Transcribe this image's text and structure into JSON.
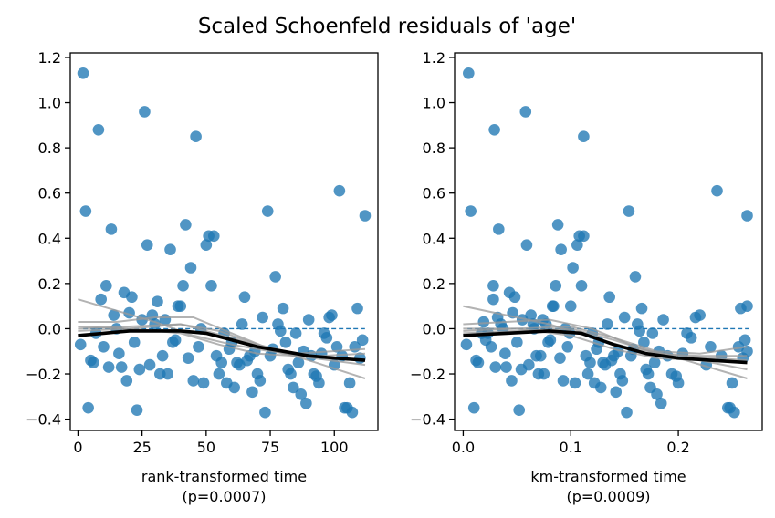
{
  "figure": {
    "title": "Scaled Schoenfeld residuals of 'age'"
  },
  "colors": {
    "points": "#1f77b4",
    "trend_bold": "#000000",
    "trend_bootstrap": "#999999",
    "zero_line": "#1f77b4"
  },
  "chart_data": [
    {
      "type": "scatter",
      "panel": "left",
      "xlabel": "rank-transformed time",
      "pvalue_label": "(p=0.0007)",
      "xlim": [
        -3,
        117
      ],
      "ylim": [
        -0.45,
        1.22
      ],
      "xticks": [
        0,
        25,
        50,
        75,
        100
      ],
      "xtick_labels": [
        "0",
        "25",
        "50",
        "75",
        "100"
      ],
      "yticks": [
        -0.4,
        -0.2,
        0.0,
        0.2,
        0.4,
        0.6,
        0.8,
        1.0,
        1.2
      ],
      "ytick_labels": [
        "−0.4",
        "−0.2",
        "0.0",
        "0.2",
        "0.4",
        "0.6",
        "0.8",
        "1.0",
        "1.2"
      ],
      "reference_line_y": 0,
      "points": [
        [
          1,
          -0.07
        ],
        [
          2,
          1.13
        ],
        [
          3,
          0.52
        ],
        [
          4,
          -0.35
        ],
        [
          5,
          -0.14
        ],
        [
          6,
          -0.15
        ],
        [
          7,
          -0.02
        ],
        [
          8,
          0.88
        ],
        [
          9,
          0.13
        ],
        [
          10,
          -0.08
        ],
        [
          11,
          0.19
        ],
        [
          12,
          -0.17
        ],
        [
          13,
          0.44
        ],
        [
          14,
          0.06
        ],
        [
          15,
          0.0
        ],
        [
          16,
          -0.11
        ],
        [
          17,
          -0.17
        ],
        [
          18,
          0.16
        ],
        [
          19,
          -0.23
        ],
        [
          20,
          0.07
        ],
        [
          21,
          0.14
        ],
        [
          22,
          -0.06
        ],
        [
          23,
          -0.36
        ],
        [
          24,
          -0.18
        ],
        [
          25,
          0.04
        ],
        [
          26,
          0.96
        ],
        [
          27,
          0.37
        ],
        [
          28,
          -0.16
        ],
        [
          29,
          0.06
        ],
        [
          30,
          0.02
        ],
        [
          31,
          0.12
        ],
        [
          32,
          -0.2
        ],
        [
          33,
          -0.12
        ],
        [
          34,
          0.04
        ],
        [
          35,
          -0.2
        ],
        [
          36,
          0.35
        ],
        [
          37,
          -0.06
        ],
        [
          38,
          -0.05
        ],
        [
          39,
          0.1
        ],
        [
          40,
          0.1
        ],
        [
          41,
          0.19
        ],
        [
          42,
          0.46
        ],
        [
          43,
          -0.13
        ],
        [
          44,
          0.27
        ],
        [
          45,
          -0.23
        ],
        [
          46,
          0.85
        ],
        [
          47,
          -0.08
        ],
        [
          48,
          0.0
        ],
        [
          49,
          -0.24
        ],
        [
          50,
          0.37
        ],
        [
          51,
          0.41
        ],
        [
          52,
          0.19
        ],
        [
          53,
          0.41
        ],
        [
          54,
          -0.12
        ],
        [
          55,
          -0.2
        ],
        [
          56,
          -0.15
        ],
        [
          57,
          -0.02
        ],
        [
          58,
          -0.24
        ],
        [
          59,
          -0.09
        ],
        [
          60,
          -0.06
        ],
        [
          61,
          -0.26
        ],
        [
          62,
          -0.15
        ],
        [
          63,
          -0.16
        ],
        [
          64,
          0.02
        ],
        [
          65,
          0.14
        ],
        [
          66,
          -0.14
        ],
        [
          67,
          -0.12
        ],
        [
          68,
          -0.28
        ],
        [
          69,
          -0.1
        ],
        [
          70,
          -0.2
        ],
        [
          71,
          -0.23
        ],
        [
          72,
          0.05
        ],
        [
          73,
          -0.37
        ],
        [
          74,
          0.52
        ],
        [
          75,
          -0.12
        ],
        [
          76,
          -0.09
        ],
        [
          77,
          0.23
        ],
        [
          78,
          0.02
        ],
        [
          79,
          -0.01
        ],
        [
          80,
          0.09
        ],
        [
          81,
          -0.06
        ],
        [
          82,
          -0.18
        ],
        [
          83,
          -0.2
        ],
        [
          84,
          -0.26
        ],
        [
          85,
          -0.02
        ],
        [
          86,
          -0.15
        ],
        [
          87,
          -0.29
        ],
        [
          88,
          -0.1
        ],
        [
          89,
          -0.33
        ],
        [
          90,
          0.04
        ],
        [
          91,
          -0.12
        ],
        [
          92,
          -0.2
        ],
        [
          93,
          -0.21
        ],
        [
          94,
          -0.24
        ],
        [
          95,
          -0.11
        ],
        [
          96,
          -0.02
        ],
        [
          97,
          -0.04
        ],
        [
          98,
          0.05
        ],
        [
          99,
          0.06
        ],
        [
          100,
          -0.16
        ],
        [
          101,
          -0.08
        ],
        [
          102,
          0.61
        ],
        [
          103,
          -0.12
        ],
        [
          104,
          -0.35
        ],
        [
          105,
          -0.35
        ],
        [
          106,
          -0.24
        ],
        [
          107,
          -0.37
        ],
        [
          108,
          -0.08
        ],
        [
          109,
          0.09
        ],
        [
          110,
          -0.13
        ],
        [
          111,
          -0.05
        ],
        [
          112,
          0.5
        ]
      ],
      "trend_bold": [
        [
          0,
          -0.03
        ],
        [
          10,
          -0.02
        ],
        [
          20,
          -0.01
        ],
        [
          30,
          -0.01
        ],
        [
          40,
          -0.01
        ],
        [
          50,
          -0.02
        ],
        [
          60,
          -0.05
        ],
        [
          70,
          -0.08
        ],
        [
          80,
          -0.1
        ],
        [
          90,
          -0.12
        ],
        [
          100,
          -0.13
        ],
        [
          112,
          -0.14
        ]
      ],
      "trend_bootstrap": [
        [
          [
            0,
            0.13
          ],
          [
            15,
            0.08
          ],
          [
            30,
            0.03
          ],
          [
            45,
            -0.03
          ],
          [
            60,
            -0.07
          ],
          [
            75,
            -0.1
          ],
          [
            90,
            -0.12
          ],
          [
            112,
            -0.14
          ]
        ],
        [
          [
            0,
            0.03
          ],
          [
            15,
            0.03
          ],
          [
            30,
            0.05
          ],
          [
            45,
            0.05
          ],
          [
            60,
            -0.02
          ],
          [
            75,
            -0.09
          ],
          [
            90,
            -0.14
          ],
          [
            112,
            -0.22
          ]
        ],
        [
          [
            0,
            -0.01
          ],
          [
            20,
            0.0
          ],
          [
            40,
            0.02
          ],
          [
            55,
            -0.01
          ],
          [
            70,
            -0.07
          ],
          [
            85,
            -0.11
          ],
          [
            112,
            -0.09
          ]
        ],
        [
          [
            0,
            0.01
          ],
          [
            20,
            0.0
          ],
          [
            40,
            -0.02
          ],
          [
            55,
            -0.07
          ],
          [
            70,
            -0.11
          ],
          [
            85,
            -0.12
          ],
          [
            112,
            -0.16
          ]
        ],
        [
          [
            0,
            0.0
          ],
          [
            20,
            0.01
          ],
          [
            40,
            0.02
          ],
          [
            60,
            -0.04
          ],
          [
            80,
            -0.11
          ],
          [
            95,
            -0.12
          ],
          [
            112,
            -0.11
          ]
        ]
      ]
    },
    {
      "type": "scatter",
      "panel": "right",
      "xlabel": "km-transformed time",
      "pvalue_label": "(p=0.0009)",
      "xlim": [
        -0.008,
        0.278
      ],
      "ylim": [
        -0.45,
        1.22
      ],
      "xticks": [
        0.0,
        0.1,
        0.2
      ],
      "xtick_labels": [
        "0.0",
        "0.1",
        "0.2"
      ],
      "yticks": [
        -0.4,
        -0.2,
        0.0,
        0.2,
        0.4,
        0.6,
        0.8,
        1.0,
        1.2
      ],
      "ytick_labels": [
        "−0.4",
        "−0.2",
        "0.0",
        "0.2",
        "0.4",
        "0.6",
        "0.8",
        "1.0",
        "1.2"
      ],
      "reference_line_y": 0,
      "points": [
        [
          0.003,
          -0.07
        ],
        [
          0.005,
          1.13
        ],
        [
          0.007,
          0.52
        ],
        [
          0.01,
          -0.35
        ],
        [
          0.012,
          -0.14
        ],
        [
          0.014,
          -0.15
        ],
        [
          0.017,
          -0.02
        ],
        [
          0.019,
          0.03
        ],
        [
          0.021,
          -0.05
        ],
        [
          0.023,
          -0.02
        ],
        [
          0.026,
          -0.08
        ],
        [
          0.028,
          0.13
        ],
        [
          0.028,
          0.19
        ],
        [
          0.029,
          0.88
        ],
        [
          0.03,
          -0.17
        ],
        [
          0.032,
          0.05
        ],
        [
          0.033,
          0.44
        ],
        [
          0.035,
          0.02
        ],
        [
          0.037,
          0.0
        ],
        [
          0.039,
          -0.11
        ],
        [
          0.04,
          -0.17
        ],
        [
          0.043,
          0.16
        ],
        [
          0.045,
          -0.23
        ],
        [
          0.046,
          0.07
        ],
        [
          0.048,
          0.14
        ],
        [
          0.05,
          -0.06
        ],
        [
          0.052,
          -0.36
        ],
        [
          0.054,
          -0.18
        ],
        [
          0.055,
          0.04
        ],
        [
          0.058,
          0.96
        ],
        [
          0.059,
          0.37
        ],
        [
          0.061,
          -0.16
        ],
        [
          0.063,
          0.06
        ],
        [
          0.065,
          0.02
        ],
        [
          0.066,
          0.0
        ],
        [
          0.068,
          -0.12
        ],
        [
          0.07,
          -0.2
        ],
        [
          0.072,
          -0.12
        ],
        [
          0.074,
          0.04
        ],
        [
          0.075,
          -0.2
        ],
        [
          0.077,
          0.02
        ],
        [
          0.079,
          -0.06
        ],
        [
          0.081,
          -0.05
        ],
        [
          0.083,
          0.1
        ],
        [
          0.084,
          0.1
        ],
        [
          0.086,
          0.19
        ],
        [
          0.088,
          0.46
        ],
        [
          0.09,
          -0.13
        ],
        [
          0.091,
          0.35
        ],
        [
          0.093,
          -0.23
        ],
        [
          0.095,
          0.0
        ],
        [
          0.097,
          -0.08
        ],
        [
          0.099,
          -0.02
        ],
        [
          0.1,
          0.1
        ],
        [
          0.102,
          0.27
        ],
        [
          0.104,
          -0.24
        ],
        [
          0.106,
          0.37
        ],
        [
          0.108,
          0.41
        ],
        [
          0.11,
          0.19
        ],
        [
          0.112,
          0.41
        ],
        [
          0.112,
          0.85
        ],
        [
          0.114,
          -0.12
        ],
        [
          0.116,
          -0.2
        ],
        [
          0.118,
          -0.15
        ],
        [
          0.12,
          -0.02
        ],
        [
          0.122,
          -0.24
        ],
        [
          0.124,
          -0.09
        ],
        [
          0.126,
          -0.06
        ],
        [
          0.128,
          -0.26
        ],
        [
          0.13,
          -0.15
        ],
        [
          0.132,
          -0.16
        ],
        [
          0.134,
          0.02
        ],
        [
          0.136,
          0.14
        ],
        [
          0.138,
          -0.14
        ],
        [
          0.14,
          -0.12
        ],
        [
          0.142,
          -0.28
        ],
        [
          0.144,
          -0.1
        ],
        [
          0.146,
          -0.2
        ],
        [
          0.148,
          -0.23
        ],
        [
          0.15,
          0.05
        ],
        [
          0.152,
          -0.37
        ],
        [
          0.154,
          0.52
        ],
        [
          0.156,
          -0.12
        ],
        [
          0.158,
          -0.09
        ],
        [
          0.16,
          0.23
        ],
        [
          0.162,
          0.02
        ],
        [
          0.164,
          -0.01
        ],
        [
          0.166,
          0.09
        ],
        [
          0.168,
          -0.06
        ],
        [
          0.17,
          -0.18
        ],
        [
          0.172,
          -0.2
        ],
        [
          0.174,
          -0.26
        ],
        [
          0.176,
          -0.02
        ],
        [
          0.178,
          -0.15
        ],
        [
          0.18,
          -0.29
        ],
        [
          0.182,
          -0.1
        ],
        [
          0.184,
          -0.33
        ],
        [
          0.186,
          0.04
        ],
        [
          0.19,
          -0.12
        ],
        [
          0.194,
          -0.2
        ],
        [
          0.198,
          -0.21
        ],
        [
          0.2,
          -0.24
        ],
        [
          0.204,
          -0.11
        ],
        [
          0.208,
          -0.02
        ],
        [
          0.212,
          -0.04
        ],
        [
          0.216,
          0.05
        ],
        [
          0.22,
          0.06
        ],
        [
          0.226,
          -0.16
        ],
        [
          0.23,
          -0.08
        ],
        [
          0.236,
          0.61
        ],
        [
          0.24,
          -0.12
        ],
        [
          0.246,
          -0.35
        ],
        [
          0.248,
          -0.35
        ],
        [
          0.25,
          -0.24
        ],
        [
          0.252,
          -0.37
        ],
        [
          0.256,
          -0.08
        ],
        [
          0.258,
          0.09
        ],
        [
          0.26,
          -0.13
        ],
        [
          0.262,
          -0.05
        ],
        [
          0.264,
          0.5
        ],
        [
          0.264,
          0.1
        ],
        [
          0.264,
          -0.1
        ]
      ],
      "trend_bold": [
        [
          0.0,
          -0.03
        ],
        [
          0.04,
          -0.02
        ],
        [
          0.08,
          -0.01
        ],
        [
          0.11,
          -0.02
        ],
        [
          0.14,
          -0.07
        ],
        [
          0.17,
          -0.11
        ],
        [
          0.2,
          -0.13
        ],
        [
          0.23,
          -0.14
        ],
        [
          0.264,
          -0.15
        ]
      ],
      "trend_bootstrap": [
        [
          [
            0.0,
            0.1
          ],
          [
            0.04,
            0.06
          ],
          [
            0.08,
            0.02
          ],
          [
            0.12,
            -0.04
          ],
          [
            0.16,
            -0.09
          ],
          [
            0.2,
            -0.12
          ],
          [
            0.264,
            -0.14
          ]
        ],
        [
          [
            0.0,
            0.02
          ],
          [
            0.04,
            0.03
          ],
          [
            0.08,
            0.04
          ],
          [
            0.12,
            0.0
          ],
          [
            0.16,
            -0.08
          ],
          [
            0.2,
            -0.13
          ],
          [
            0.264,
            -0.22
          ]
        ],
        [
          [
            0.0,
            -0.01
          ],
          [
            0.05,
            0.0
          ],
          [
            0.1,
            0.01
          ],
          [
            0.14,
            -0.04
          ],
          [
            0.18,
            -0.1
          ],
          [
            0.22,
            -0.11
          ],
          [
            0.264,
            -0.08
          ]
        ],
        [
          [
            0.0,
            0.0
          ],
          [
            0.05,
            0.0
          ],
          [
            0.1,
            -0.03
          ],
          [
            0.14,
            -0.09
          ],
          [
            0.18,
            -0.13
          ],
          [
            0.22,
            -0.14
          ],
          [
            0.264,
            -0.18
          ]
        ],
        [
          [
            0.0,
            -0.02
          ],
          [
            0.05,
            -0.01
          ],
          [
            0.1,
            0.0
          ],
          [
            0.14,
            -0.05
          ],
          [
            0.18,
            -0.11
          ],
          [
            0.22,
            -0.12
          ],
          [
            0.264,
            -0.12
          ]
        ]
      ]
    }
  ]
}
